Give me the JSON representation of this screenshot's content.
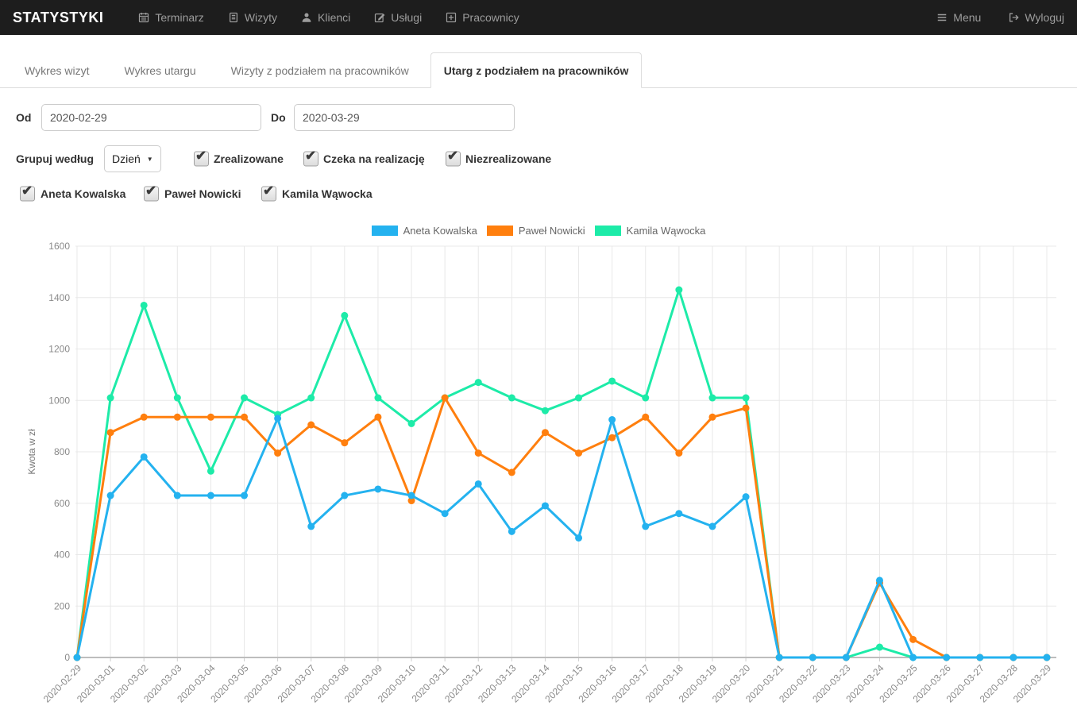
{
  "navbar": {
    "brand": "STATYSTYKI",
    "items": [
      {
        "label": "Terminarz",
        "icon": "calendar-icon"
      },
      {
        "label": "Wizyty",
        "icon": "document-icon"
      },
      {
        "label": "Klienci",
        "icon": "user-icon"
      },
      {
        "label": "Usługi",
        "icon": "pencil-square-icon"
      },
      {
        "label": "Pracownicy",
        "icon": "plus-square-icon"
      }
    ],
    "right_items": [
      {
        "label": "Menu",
        "icon": "hamburger-icon"
      },
      {
        "label": "Wyloguj",
        "icon": "logout-icon"
      }
    ]
  },
  "tabs": [
    {
      "label": "Wykres wizyt",
      "active": false
    },
    {
      "label": "Wykres utargu",
      "active": false
    },
    {
      "label": "Wizyty z podziałem na pracowników",
      "active": false
    },
    {
      "label": "Utarg z podziałem na pracowników",
      "active": true
    }
  ],
  "filters": {
    "od_label": "Od",
    "od_value": "2020-02-29",
    "do_label": "Do",
    "do_value": "2020-03-29",
    "group_label": "Grupuj według",
    "group_value": "Dzień",
    "status_checkboxes": [
      {
        "label": "Zrealizowane",
        "checked": true
      },
      {
        "label": "Czeka na realizację",
        "checked": true
      },
      {
        "label": "Niezrealizowane",
        "checked": true
      }
    ],
    "employee_checkboxes": [
      {
        "label": "Aneta Kowalska",
        "checked": true
      },
      {
        "label": "Paweł Nowicki",
        "checked": true
      },
      {
        "label": "Kamila Wąwocka",
        "checked": true
      }
    ]
  },
  "chart_data": {
    "type": "line",
    "title": "",
    "ylabel": "Kwota w zł",
    "ylim": [
      0,
      1600
    ],
    "ytick_step": 200,
    "grid": true,
    "legend_position": "top",
    "x": [
      "2020-02-29",
      "2020-03-01",
      "2020-03-02",
      "2020-03-03",
      "2020-03-04",
      "2020-03-05",
      "2020-03-06",
      "2020-03-07",
      "2020-03-08",
      "2020-03-09",
      "2020-03-10",
      "2020-03-11",
      "2020-03-12",
      "2020-03-13",
      "2020-03-14",
      "2020-03-15",
      "2020-03-16",
      "2020-03-17",
      "2020-03-18",
      "2020-03-19",
      "2020-03-20",
      "2020-03-21",
      "2020-03-22",
      "2020-03-23",
      "2020-03-24",
      "2020-03-25",
      "2020-03-26",
      "2020-03-27",
      "2020-03-28",
      "2020-03-29"
    ],
    "series": [
      {
        "name": "Aneta Kowalska",
        "color": "#24B2EF",
        "values": [
          0,
          630,
          780,
          630,
          630,
          630,
          930,
          510,
          630,
          655,
          630,
          560,
          675,
          490,
          590,
          465,
          925,
          510,
          560,
          510,
          625,
          0,
          0,
          0,
          300,
          0,
          0,
          0,
          0,
          0
        ]
      },
      {
        "name": "Paweł Nowicki",
        "color": "#FF7F0E",
        "values": [
          0,
          875,
          935,
          935,
          935,
          935,
          795,
          905,
          835,
          935,
          610,
          1010,
          795,
          720,
          875,
          795,
          855,
          935,
          795,
          935,
          970,
          0,
          0,
          0,
          290,
          70,
          0,
          0,
          0,
          0
        ]
      },
      {
        "name": "Kamila Wąwocka",
        "color": "#1DEBA8",
        "values": [
          0,
          1010,
          1370,
          1010,
          725,
          1010,
          945,
          1010,
          1330,
          1010,
          910,
          1010,
          1070,
          1010,
          960,
          1010,
          1075,
          1010,
          1430,
          1010,
          1010,
          0,
          0,
          0,
          40,
          0,
          0,
          0,
          0,
          0
        ]
      }
    ]
  }
}
